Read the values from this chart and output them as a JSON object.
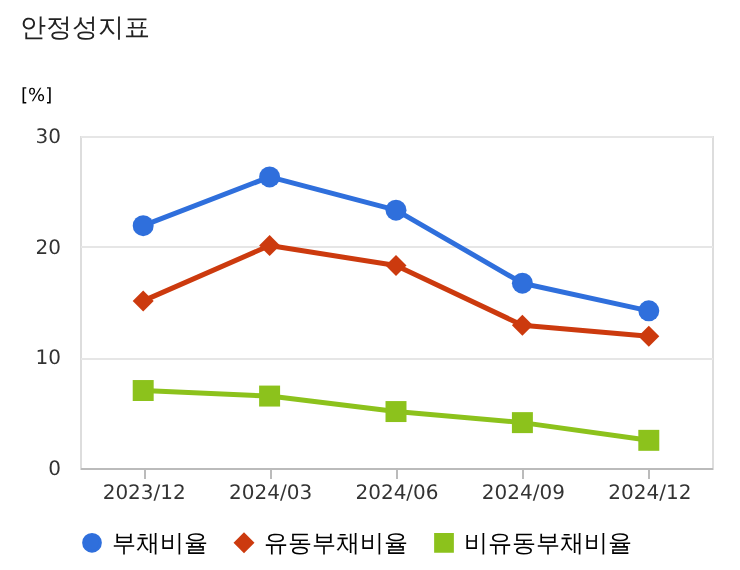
{
  "chart_data": {
    "type": "line",
    "title": "안정성지표",
    "ylabel": "[%]",
    "categories": [
      "2023/12",
      "2024/03",
      "2024/06",
      "2024/09",
      "2024/12"
    ],
    "series": [
      {
        "name": "부채비율",
        "color": "#2f6fdc",
        "marker": "circle",
        "values": [
          21.9,
          26.3,
          23.3,
          16.7,
          14.2
        ]
      },
      {
        "name": "유동부채비율",
        "color": "#cc3a0e",
        "marker": "diamond",
        "values": [
          15.1,
          20.1,
          18.3,
          12.9,
          11.9
        ]
      },
      {
        "name": "비유동부채비율",
        "color": "#8cc21c",
        "marker": "square",
        "values": [
          7.0,
          6.5,
          5.1,
          4.1,
          2.5
        ]
      }
    ],
    "ylim": [
      0,
      30
    ],
    "yticks": [
      0,
      10,
      20,
      30
    ],
    "grid": "y",
    "legend": "bottom"
  }
}
